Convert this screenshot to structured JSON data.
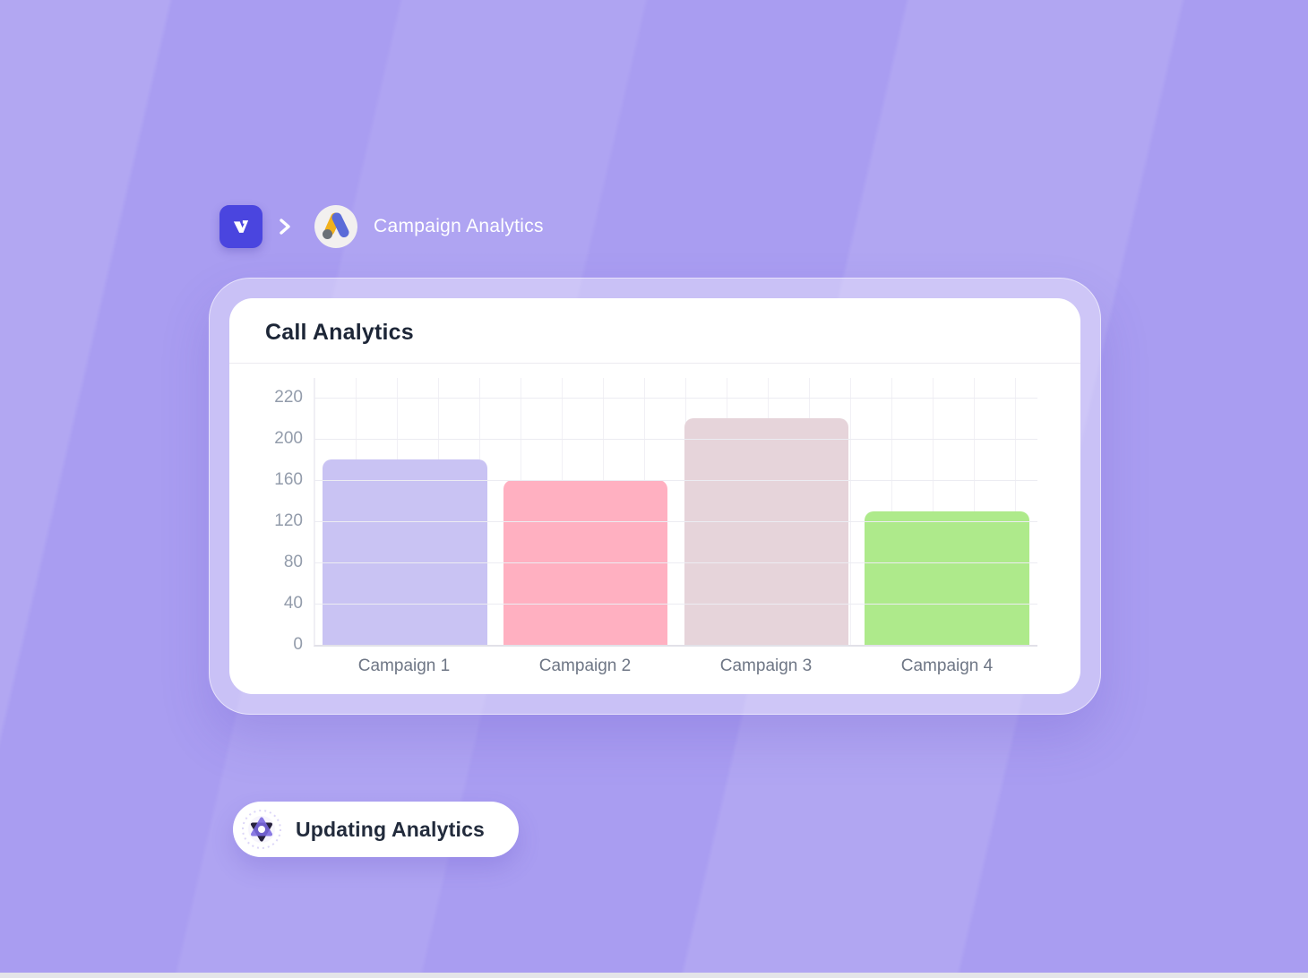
{
  "breadcrumb": {
    "title": "Campaign Analytics",
    "brand_icon": "brand-logo-v",
    "separator_icon": "chevron-right",
    "app_icon": "google-ads-logo"
  },
  "card": {
    "title": "Call Analytics"
  },
  "chart_data": {
    "type": "bar",
    "title": "Call Analytics",
    "categories": [
      "Campaign 1",
      "Campaign 2",
      "Campaign 3",
      "Campaign 4"
    ],
    "values": [
      180,
      160,
      210,
      130
    ],
    "bar_colors": [
      "#c9c3f3",
      "#ffb0c1",
      "#e6d4da",
      "#aeea8b"
    ],
    "y_ticks": [
      0,
      40,
      80,
      120,
      160,
      200,
      220
    ],
    "ylim": [
      0,
      220
    ],
    "xlabel": "",
    "ylabel": "",
    "grid": true,
    "legend": false
  },
  "status_pill": {
    "label": "Updating Analytics",
    "icon": "spinner-star"
  },
  "colors": {
    "background": "#a99df1",
    "brand_tile": "#4a45df",
    "ads_yellow": "#f2b11c",
    "ads_blue": "#5a6bd8",
    "ads_gray": "#6a7078",
    "card_title_text": "#1d2637",
    "axis_label_text": "#939cab",
    "category_label_text": "#6e7685",
    "pill_text": "#222b3c"
  }
}
